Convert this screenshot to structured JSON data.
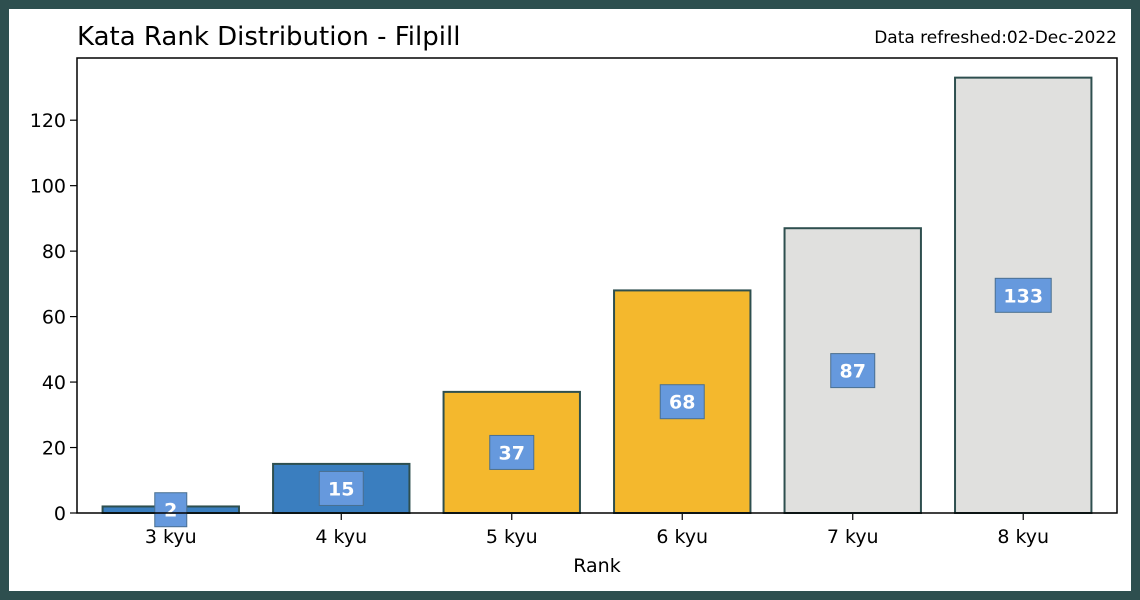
{
  "chart_data": {
    "type": "bar",
    "title": "Kata Rank Distribution - Filpill",
    "subtitle": "Data refreshed:02-Dec-2022",
    "xlabel": "Rank",
    "ylabel": "",
    "categories": [
      "3 kyu",
      "4 kyu",
      "5 kyu",
      "6 kyu",
      "7 kyu",
      "8 kyu"
    ],
    "values": [
      2,
      15,
      37,
      68,
      87,
      133
    ],
    "bar_colors": [
      "#3a7ebf",
      "#3a7ebf",
      "#f4b82d",
      "#f4b82d",
      "#e0e0de",
      "#e0e0de"
    ],
    "ylim": [
      0,
      139
    ],
    "yticks": [
      0,
      20,
      40,
      60,
      80,
      100,
      120
    ],
    "grid": false,
    "colors": {
      "frame": "#2e4f4f",
      "bar_edge": "#2e4f4f",
      "label_box": "#6699dd"
    }
  }
}
